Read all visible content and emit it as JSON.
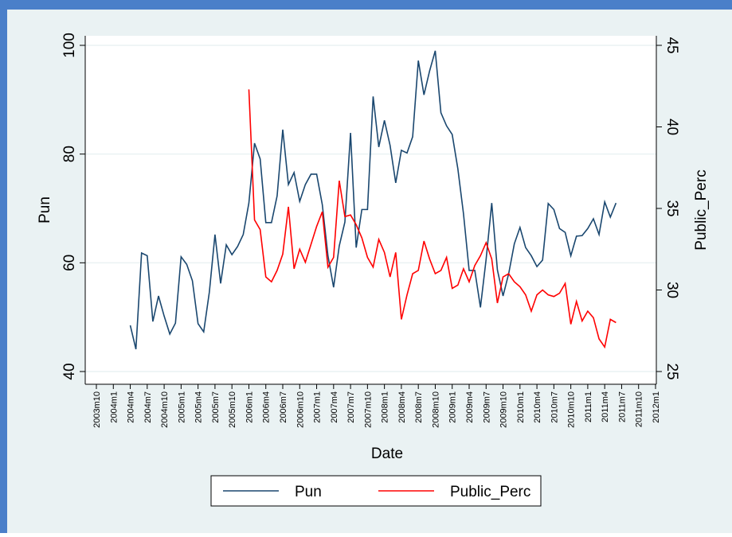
{
  "chart_data": {
    "type": "line",
    "x_label": "Date",
    "y_label": "Pun",
    "y2_label": "Public_Perc",
    "x": [
      "2004m4",
      "2004m5",
      "2004m6",
      "2004m7",
      "2004m8",
      "2004m9",
      "2004m10",
      "2004m11",
      "2004m12",
      "2005m1",
      "2005m2",
      "2005m3",
      "2005m4",
      "2005m5",
      "2005m6",
      "2005m7",
      "2005m8",
      "2005m9",
      "2005m10",
      "2005m11",
      "2005m12",
      "2006m1",
      "2006m2",
      "2006m3",
      "2006m4",
      "2006m5",
      "2006m6",
      "2006m7",
      "2006m8",
      "2006m9",
      "2006m10",
      "2006m11",
      "2006m12",
      "2007m1",
      "2007m2",
      "2007m3",
      "2007m4",
      "2007m5",
      "2007m6",
      "2007m7",
      "2007m8",
      "2007m9",
      "2007m10",
      "2007m11",
      "2007m12",
      "2008m1",
      "2008m2",
      "2008m3",
      "2008m4",
      "2008m5",
      "2008m6",
      "2008m7",
      "2008m8",
      "2008m9",
      "2008m10",
      "2008m11",
      "2008m12",
      "2009m1",
      "2009m2",
      "2009m3",
      "2009m4",
      "2009m5",
      "2009m6",
      "2009m7",
      "2009m8",
      "2009m9",
      "2009m10",
      "2009m11",
      "2009m12",
      "2010m1",
      "2010m2",
      "2010m3",
      "2010m4",
      "2010m5",
      "2010m6",
      "2010m7",
      "2010m8",
      "2010m9",
      "2010m10",
      "2010m11",
      "2010m12",
      "2011m1",
      "2011m2",
      "2011m3",
      "2011m4",
      "2011m5",
      "2011m6"
    ],
    "series": [
      {
        "name": "Pun",
        "color": "#1a476f",
        "axis": "y",
        "values": [
          48.5,
          44.1,
          61.8,
          61.3,
          49.2,
          53.9,
          50.2,
          46.9,
          48.9,
          61.1,
          59.7,
          56.7,
          48.8,
          47.3,
          54.6,
          65.2,
          56.2,
          63.3,
          61.5,
          63.0,
          65.2,
          71.0,
          82.0,
          79.1,
          67.4,
          67.4,
          72.3,
          84.5,
          74.4,
          76.6,
          71.3,
          74.4,
          76.3,
          76.3,
          70.7,
          61.3,
          55.5,
          63.1,
          67.5,
          83.9,
          62.8,
          69.8,
          69.8,
          90.6,
          81.3,
          86.2,
          81.6,
          74.7,
          80.7,
          80.2,
          83.2,
          97.2,
          90.9,
          95.3,
          99.0,
          87.6,
          85.2,
          83.6,
          77.3,
          69.0,
          58.6,
          58.6,
          51.8,
          60.6,
          71.0,
          58.7,
          53.9,
          58.0,
          63.5,
          66.5,
          62.8,
          61.3,
          59.3,
          60.5,
          70.9,
          69.8,
          66.3,
          65.6,
          61.3,
          64.9,
          65.0,
          66.3,
          68.1,
          65.2,
          71.2,
          68.4,
          71.0
        ]
      },
      {
        "name": "Public_Perc",
        "color": "#ff0000",
        "axis": "y2",
        "values": [
          null,
          null,
          null,
          null,
          null,
          null,
          null,
          null,
          null,
          null,
          null,
          null,
          null,
          null,
          null,
          null,
          null,
          null,
          null,
          null,
          null,
          42.3,
          34.3,
          33.7,
          30.8,
          30.5,
          31.2,
          32.2,
          35.1,
          31.3,
          32.5,
          31.7,
          32.8,
          33.9,
          34.8,
          31.4,
          32.0,
          36.7,
          34.5,
          34.6,
          34.0,
          33.2,
          32.0,
          31.4,
          33.1,
          32.3,
          30.8,
          32.3,
          28.2,
          29.7,
          31.0,
          31.2,
          33.0,
          31.9,
          31.0,
          31.2,
          32.0,
          30.1,
          30.3,
          31.3,
          30.5,
          31.5,
          32.1,
          32.9,
          31.9,
          29.2,
          30.8,
          31.0,
          30.5,
          30.2,
          29.7,
          28.7,
          29.7,
          30.0,
          29.7,
          29.6,
          29.8,
          30.4,
          27.9,
          29.3,
          28.1,
          28.7,
          28.3,
          27.0,
          26.5,
          28.2,
          28.0
        ]
      }
    ],
    "xlim": [
      "2003m10",
      "2012m1"
    ],
    "xticks": [
      "2003m10",
      "2004m1",
      "2004m4",
      "2004m7",
      "2004m10",
      "2005m1",
      "2005m4",
      "2005m7",
      "2005m10",
      "2006m1",
      "2006m4",
      "2006m7",
      "2006m10",
      "2007m1",
      "2007m4",
      "2007m7",
      "2007m10",
      "2008m1",
      "2008m4",
      "2008m7",
      "2008m10",
      "2009m1",
      "2009m4",
      "2009m7",
      "2009m10",
      "2010m1",
      "2010m4",
      "2010m7",
      "2010m10",
      "2011m1",
      "2011m4",
      "2011m7",
      "2011m10",
      "2012m1"
    ],
    "ylim": [
      40,
      100
    ],
    "yticks": [
      40,
      60,
      80,
      100
    ],
    "y2lim": [
      25,
      45
    ],
    "y2ticks": [
      25,
      30,
      35,
      40,
      45
    ],
    "grid": true,
    "legend": "bottom"
  }
}
